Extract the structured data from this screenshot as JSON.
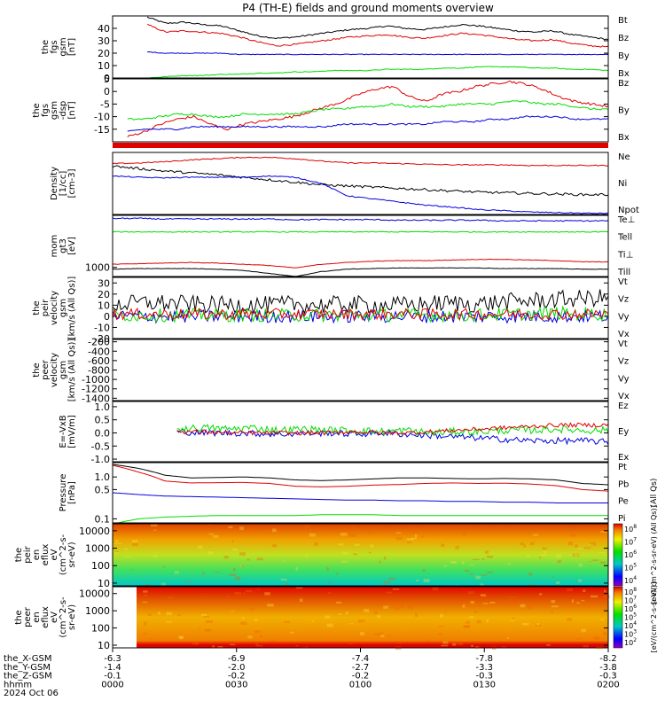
{
  "title": "P4 (TH-E) fields and ground moments overview",
  "colors": {
    "black": "#000000",
    "red": "#e00000",
    "green": "#00dd00",
    "blue": "#0000dd"
  },
  "chart_data": [
    {
      "type": "line",
      "ylabel_lines": [
        "the",
        "fgs",
        "gsm",
        "[nT]"
      ],
      "ylim": [
        0,
        50
      ],
      "yticks": [
        0,
        10,
        20,
        30,
        40
      ],
      "legend": [
        "Bt",
        "Bz",
        "By",
        "Bx"
      ],
      "series": [
        {
          "name": "Bt",
          "color": "black",
          "x_start": 0.07,
          "values": [
            49,
            44,
            45,
            43,
            42,
            38,
            34,
            32,
            33,
            35,
            37,
            39,
            40,
            42,
            40,
            39,
            41,
            43,
            42,
            40,
            38,
            37,
            38,
            35,
            33,
            31
          ],
          "noise": 0.6
        },
        {
          "name": "Bz",
          "color": "red",
          "x_start": 0.07,
          "values": [
            43,
            37,
            38,
            37,
            36,
            33,
            29,
            26,
            27,
            29,
            31,
            33,
            34,
            35,
            33,
            32,
            34,
            36,
            35,
            33,
            31,
            30,
            31,
            28,
            26,
            25
          ],
          "noise": 0.6
        },
        {
          "name": "By",
          "color": "blue",
          "x_start": 0.07,
          "values": [
            21,
            20,
            20,
            20,
            20,
            19,
            19,
            19,
            19,
            19,
            19,
            19,
            19,
            19,
            19,
            19,
            19,
            19,
            19,
            19,
            19,
            19,
            19,
            19,
            19,
            19
          ],
          "noise": 0.3
        },
        {
          "name": "Bx",
          "color": "green",
          "x_start": 0.07,
          "values": [
            0,
            1,
            2,
            2,
            3,
            3,
            4,
            4,
            5,
            5,
            6,
            6,
            6,
            7,
            7,
            7,
            8,
            8,
            9,
            9,
            9,
            8,
            8,
            7,
            7,
            6
          ],
          "noise": 0.3
        }
      ]
    },
    {
      "type": "line",
      "ylabel_lines": [
        "the",
        "fgs",
        "gsm",
        "-dsp",
        "[nT]"
      ],
      "ylim": [
        -20,
        5
      ],
      "yticks": [
        -15,
        -10,
        -5,
        0,
        5
      ],
      "legend": [
        "Bz",
        "By",
        "Bx"
      ],
      "series": [
        {
          "name": "Bz",
          "color": "red",
          "x_start": 0.03,
          "values": [
            -18,
            -16,
            -13,
            -11,
            -10,
            -13,
            -15,
            -13,
            -12,
            -11,
            -10,
            -8,
            -6,
            -4,
            -1,
            1,
            2,
            -2,
            -4,
            -1,
            0,
            2,
            3,
            4,
            3,
            1,
            -2,
            -4,
            -5,
            -6
          ],
          "noise": 0.5
        },
        {
          "name": "By",
          "color": "green",
          "x_start": 0.03,
          "values": [
            -11,
            -11,
            -10,
            -9,
            -9,
            -10,
            -10,
            -9,
            -9,
            -9,
            -9,
            -8,
            -7,
            -7,
            -6,
            -6,
            -5,
            -6,
            -6,
            -6,
            -5,
            -5,
            -5,
            -4,
            -4,
            -5,
            -5,
            -6,
            -7,
            -7
          ],
          "noise": 0.4
        },
        {
          "name": "Bx",
          "color": "blue",
          "x_start": 0.03,
          "values": [
            -16,
            -15,
            -15,
            -15,
            -14,
            -14,
            -14,
            -14,
            -14,
            -14,
            -14,
            -14,
            -14,
            -13,
            -13,
            -13,
            -13,
            -13,
            -13,
            -12,
            -12,
            -12,
            -11,
            -11,
            -10,
            -10,
            -10,
            -11,
            -11,
            -11
          ],
          "noise": 0.3
        }
      ]
    },
    {
      "type": "line",
      "ylabel_lines": [
        "Density",
        "[1/cc]",
        "[cm-3]"
      ],
      "legend": [
        "Ne",
        "Ni",
        "Npot"
      ],
      "series": [
        {
          "name": "Ne",
          "color": "red",
          "values": [
            0.82,
            0.83,
            0.85,
            0.88,
            0.9,
            0.92,
            0.92,
            0.9,
            0.86,
            0.83,
            0.83,
            0.82,
            0.81,
            0.8,
            0.8,
            0.8,
            0.79,
            0.79,
            0.79,
            0.79
          ],
          "noise": 0.008
        },
        {
          "name": "Ni",
          "color": "black",
          "values": [
            0.78,
            0.74,
            0.7,
            0.67,
            0.64,
            0.6,
            0.56,
            0.52,
            0.48,
            0.46,
            0.44,
            0.42,
            0.4,
            0.38,
            0.36,
            0.35,
            0.34,
            0.33,
            0.32,
            0.32
          ],
          "noise": 0.02
        },
        {
          "name": "Npot",
          "color": "blue",
          "values": [
            0.62,
            0.6,
            0.59,
            0.6,
            0.6,
            0.6,
            0.62,
            0.6,
            0.5,
            0.3,
            0.25,
            0.2,
            0.15,
            0.12,
            0.08,
            0.06,
            0.04,
            0.03,
            0.02,
            0.02
          ],
          "noise": 0.008
        }
      ]
    },
    {
      "type": "line",
      "ylabel_lines": [
        "mom",
        "gt3",
        "[eV]"
      ],
      "yticks_labels": [
        {
          "value": 0.15,
          "label": "1000"
        }
      ],
      "legend": [
        "Te⊥",
        "Tell",
        "Ti⊥",
        "Till"
      ],
      "series": [
        {
          "name": "Te⊥",
          "color": "blue",
          "values": [
            0.95,
            0.95,
            0.94,
            0.94,
            0.94,
            0.94,
            0.94,
            0.93,
            0.93,
            0.93,
            0.93,
            0.92,
            0.92,
            0.92,
            0.92,
            0.91,
            0.91,
            0.91,
            0.91,
            0.91
          ],
          "noise": 0.01
        },
        {
          "name": "Tell",
          "color": "green",
          "values": [
            0.73,
            0.73,
            0.73,
            0.73,
            0.73,
            0.73,
            0.73,
            0.73,
            0.73,
            0.73,
            0.73,
            0.73,
            0.73,
            0.73,
            0.73,
            0.73,
            0.73,
            0.73,
            0.73,
            0.73
          ],
          "noise": 0.008
        },
        {
          "name": "Ti⊥",
          "color": "red",
          "values": [
            0.2,
            0.21,
            0.22,
            0.23,
            0.22,
            0.2,
            0.18,
            0.14,
            0.2,
            0.23,
            0.25,
            0.26,
            0.26,
            0.27,
            0.28,
            0.28,
            0.27,
            0.26,
            0.24,
            0.24
          ],
          "noise": 0.004
        },
        {
          "name": "Till",
          "color": "black",
          "values": [
            0.12,
            0.13,
            0.13,
            0.13,
            0.12,
            0.1,
            0.05,
            0.0,
            0.08,
            0.12,
            0.13,
            0.14,
            0.14,
            0.14,
            0.14,
            0.13,
            0.13,
            0.13,
            0.12,
            0.12
          ],
          "noise": 0.003
        }
      ]
    },
    {
      "type": "line",
      "ylabel_lines": [
        "the",
        "peir",
        "velocity",
        "gsm",
        "[km/s (All Qs)]"
      ],
      "ylim": [
        -20,
        35
      ],
      "yticks": [
        -20,
        -10,
        0,
        10,
        20,
        30
      ],
      "legend": [
        "Vt",
        "Vz",
        "Vy",
        "Vx"
      ],
      "series": [
        {
          "name": "Vt",
          "color": "black",
          "values": [
            10,
            12,
            12,
            11,
            10,
            11,
            10,
            11,
            10,
            11,
            10,
            10,
            11,
            12,
            11,
            13,
            14,
            15,
            16,
            17
          ],
          "noise": 8
        },
        {
          "name": "Vx",
          "color": "blue",
          "values": [
            0,
            0,
            0,
            0,
            0,
            0,
            0,
            0,
            0,
            0,
            0,
            0,
            0,
            0,
            0,
            0,
            0,
            0,
            0,
            0
          ],
          "noise": 6
        },
        {
          "name": "Vy",
          "color": "green",
          "values": [
            1,
            1,
            1,
            1,
            1,
            1,
            1,
            1,
            1,
            1,
            1,
            1,
            1,
            1,
            1,
            2,
            2,
            3,
            2,
            2
          ],
          "noise": 6
        },
        {
          "name": "Vz",
          "color": "red",
          "values": [
            2,
            2,
            2,
            2,
            2,
            2,
            2,
            2,
            2,
            2,
            2,
            2,
            2,
            2,
            2,
            2,
            2,
            2,
            2,
            2
          ],
          "noise": 5
        }
      ]
    },
    {
      "type": "line",
      "ylabel_lines": [
        "the",
        "peer",
        "velocity",
        "gsm",
        "[km/s (All Qs)]"
      ],
      "ylim": [
        -1450,
        -150
      ],
      "yticks": [
        -1400,
        -1200,
        -1000,
        -800,
        -600,
        -400,
        -200
      ],
      "legend": [
        "Vt",
        "Vz",
        "Vy",
        "Vx"
      ],
      "series": []
    },
    {
      "type": "line",
      "ylabel_lines": [
        "E=-VxB",
        "[mV/m]"
      ],
      "ylim": [
        -1.1,
        1.2
      ],
      "yticks": [
        -1.0,
        -0.5,
        0.0,
        0.5,
        1.0
      ],
      "ytick_labels": [
        "-1.0",
        "-0.5",
        "0.0",
        "0.5",
        "1.0"
      ],
      "legend": [
        "Ez",
        "Ey",
        "Ex"
      ],
      "series": [
        {
          "name": "Ex",
          "color": "blue",
          "x_start": 0.13,
          "values": [
            0.05,
            0.0,
            0.0,
            -0.02,
            -0.05,
            -0.02,
            0.0,
            -0.05,
            0.0,
            -0.05,
            -0.1,
            -0.15,
            -0.2,
            -0.25,
            -0.3,
            -0.3,
            -0.3,
            -0.35
          ],
          "noise": 0.12
        },
        {
          "name": "Ey",
          "color": "green",
          "x_start": 0.13,
          "values": [
            0.15,
            0.2,
            0.15,
            0.2,
            0.1,
            0.15,
            0.1,
            0.1,
            0.05,
            0.1,
            0.0,
            0.05,
            0.05,
            0.1,
            0.1,
            0.15,
            0.1,
            0.1
          ],
          "noise": 0.14
        },
        {
          "name": "Ez",
          "color": "red",
          "x_start": 0.13,
          "values": [
            0.05,
            0.05,
            0.0,
            0.0,
            0.0,
            0.0,
            0.0,
            0.05,
            0.0,
            0.0,
            0.05,
            0.1,
            0.15,
            0.2,
            0.25,
            0.3,
            0.3,
            0.3
          ],
          "noise": 0.08
        }
      ]
    },
    {
      "type": "line",
      "ylabel_lines": [
        "Pressure",
        "[nPa]"
      ],
      "yscale": "log",
      "ylim": [
        0.08,
        2.2
      ],
      "yticks": [
        0.1,
        0.5,
        1.0
      ],
      "ytick_labels": [
        "0.1",
        "0.5",
        "1.0"
      ],
      "legend": [
        "Pt",
        "Pb",
        "Pe",
        "Pi"
      ],
      "legend_note": "(All Qs)",
      "series": [
        {
          "name": "Pt",
          "color": "black",
          "values": [
            2.0,
            1.6,
            1.1,
            0.95,
            0.97,
            1.0,
            0.95,
            0.85,
            0.82,
            0.85,
            0.9,
            0.95,
            0.95,
            0.92,
            0.9,
            0.92,
            0.9,
            0.85,
            0.7,
            0.65
          ],
          "noise": 0.0
        },
        {
          "name": "Pb",
          "color": "red",
          "values": [
            1.9,
            1.3,
            0.8,
            0.72,
            0.73,
            0.74,
            0.7,
            0.6,
            0.58,
            0.6,
            0.64,
            0.66,
            0.7,
            0.72,
            0.7,
            0.71,
            0.68,
            0.62,
            0.5,
            0.46
          ],
          "noise": 0.0
        },
        {
          "name": "Pe",
          "color": "blue",
          "values": [
            0.42,
            0.38,
            0.35,
            0.34,
            0.33,
            0.32,
            0.31,
            0.3,
            0.29,
            0.28,
            0.28,
            0.27,
            0.27,
            0.26,
            0.26,
            0.25,
            0.25,
            0.24,
            0.24,
            0.24
          ],
          "noise": 0.0
        },
        {
          "name": "Pi",
          "color": "green",
          "values": [
            0.075,
            0.1,
            0.11,
            0.115,
            0.12,
            0.12,
            0.12,
            0.12,
            0.125,
            0.125,
            0.125,
            0.12,
            0.12,
            0.12,
            0.12,
            0.12,
            0.12,
            0.12,
            0.12,
            0.12
          ],
          "noise": 0.0
        }
      ]
    },
    {
      "type": "heatmap",
      "ylabel_lines": [
        "the",
        "peir",
        "en",
        "eflux",
        "eV",
        "(cm^2-s-",
        "sr-eV)"
      ],
      "yscale": "log",
      "ylim": [
        7,
        25000
      ],
      "yticks": [
        10,
        100,
        1000,
        10000
      ],
      "ytick_labels": [
        "10",
        "100",
        "1000",
        "10000"
      ],
      "colorbar_ticks": [
        "10^4",
        "10^5",
        "10^6",
        "10^7",
        "10^8"
      ],
      "colorbar_label": "[eV/(cm^2-s-sr-eV) (All Qs)]"
    },
    {
      "type": "heatmap",
      "ylabel_lines": [
        "the",
        "peer",
        "en",
        "eflux",
        "eV",
        "(cm^2-s-",
        "sr-eV)"
      ],
      "yscale": "log",
      "ylim": [
        7,
        25000
      ],
      "yticks": [
        10,
        100,
        1000,
        10000
      ],
      "ytick_labels": [
        "10",
        "100",
        "1000",
        "10000"
      ],
      "colorbar_ticks": [
        "10^2",
        "10^3",
        "10^4",
        "10^5",
        "10^6",
        "10^7",
        "10^8"
      ],
      "colorbar_label": "[eV/(cm^2-s-sr-eV)]"
    }
  ],
  "x_axis": {
    "row_labels": [
      "the_X-GSM",
      "the_Y-GSM",
      "the_Z-GSM",
      "hhmm",
      "2024 Oct 06"
    ],
    "ticks": [
      {
        "values": [
          "-6.3",
          "-1.4",
          "-0.1",
          "0000"
        ]
      },
      {
        "values": [
          "-6.9",
          "-2.0",
          "-0.2",
          "0030"
        ]
      },
      {
        "values": [
          "-7.4",
          "-2.7",
          "-0.2",
          "0100"
        ]
      },
      {
        "values": [
          "-7.8",
          "-3.3",
          "-0.3",
          "0130"
        ]
      },
      {
        "values": [
          "-8.2",
          "-3.8",
          "-0.3",
          "0200"
        ]
      }
    ]
  }
}
